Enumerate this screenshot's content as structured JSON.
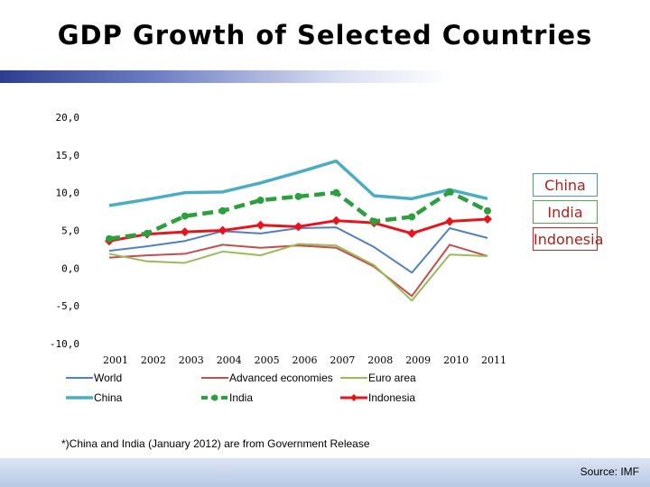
{
  "slide": {
    "title": "GDP Growth of Selected Countries",
    "footnote": "*)China and India (January 2012) are from Government Release",
    "source": "Source: IMF"
  },
  "callouts": {
    "china": "China",
    "india": "India",
    "indonesia": "Indonesia"
  },
  "chart_data": {
    "type": "line",
    "title": "GDP Growth of Selected Countries",
    "xlabel": "",
    "ylabel": "",
    "ylim": [
      -10,
      20
    ],
    "y_ticks": [
      20,
      15,
      10,
      5,
      0,
      -5,
      -10
    ],
    "y_tick_labels": [
      "20,0",
      "15,0",
      "10,0",
      "5,0",
      "0,0",
      "-5,0",
      "-10,0"
    ],
    "x": [
      "2001",
      "2002",
      "2003",
      "2004",
      "2005",
      "2006",
      "2007",
      "2008",
      "2009",
      "2010",
      "2011"
    ],
    "grid": false,
    "legend_position": "bottom",
    "series": [
      {
        "name": "World",
        "color": "#4f81bd",
        "style": "solid",
        "marker": "none",
        "values": [
          2.3,
          2.9,
          3.6,
          4.9,
          4.6,
          5.3,
          5.4,
          2.8,
          -0.6,
          5.3,
          4.0
        ]
      },
      {
        "name": "Advanced economies",
        "color": "#c0504d",
        "style": "solid",
        "marker": "none",
        "values": [
          1.4,
          1.7,
          1.9,
          3.1,
          2.7,
          3.0,
          2.7,
          0.2,
          -3.7,
          3.1,
          1.6
        ]
      },
      {
        "name": "Euro area",
        "color": "#9bbb59",
        "style": "solid",
        "marker": "none",
        "values": [
          1.9,
          0.9,
          0.7,
          2.2,
          1.7,
          3.2,
          3.0,
          0.4,
          -4.3,
          1.8,
          1.6
        ]
      },
      {
        "name": "China",
        "color": "#4bacc6",
        "style": "thick",
        "marker": "none",
        "values": [
          8.3,
          9.1,
          10.0,
          10.1,
          11.3,
          12.7,
          14.2,
          9.6,
          9.2,
          10.4,
          9.2
        ]
      },
      {
        "name": "India",
        "color": "#2ca03c",
        "style": "dashed",
        "marker": "circle",
        "values": [
          3.9,
          4.6,
          6.9,
          7.6,
          9.0,
          9.5,
          10.0,
          6.2,
          6.8,
          10.1,
          7.6
        ]
      },
      {
        "name": "Indonesia",
        "color": "#e8141c",
        "style": "solid",
        "marker": "diamond",
        "values": [
          3.6,
          4.5,
          4.8,
          5.0,
          5.7,
          5.5,
          6.3,
          6.0,
          4.6,
          6.2,
          6.5
        ]
      }
    ]
  }
}
